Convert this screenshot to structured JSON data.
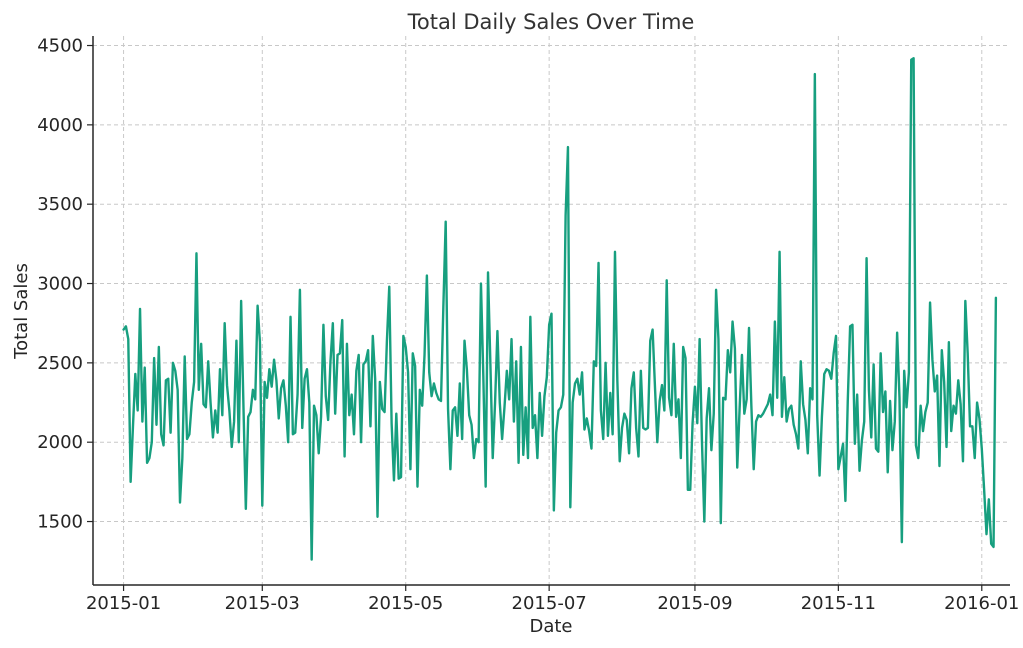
{
  "chart_data": {
    "type": "line",
    "title": "Total Daily Sales Over Time",
    "xlabel": "Date",
    "ylabel": "Total Sales",
    "x_tick_labels": [
      "2015-01",
      "2015-03",
      "2015-05",
      "2015-07",
      "2015-09",
      "2015-11",
      "2016-01"
    ],
    "x_tick_dates": [
      "2015-01-01",
      "2015-03-01",
      "2015-05-01",
      "2015-07-01",
      "2015-09-01",
      "2015-11-01",
      "2016-01-01"
    ],
    "x_range": [
      "2014-12-19",
      "2016-01-13"
    ],
    "y_ticks": [
      1500,
      2000,
      2500,
      3000,
      3500,
      4000,
      4500
    ],
    "ylim": [
      1100,
      4560
    ],
    "grid": true,
    "line_color": "#179f7f",
    "grid_color": "#c8c8c8",
    "series": [
      {
        "start_date": "2015-01-01",
        "end_date": "2015-12-31",
        "values": [
          2710,
          2730,
          2650,
          1750,
          2100,
          2430,
          2200,
          2840,
          2130,
          2470,
          1870,
          1900,
          2000,
          2530,
          2110,
          2600,
          2050,
          1980,
          2390,
          2400,
          2060,
          2500,
          2450,
          2330,
          1620,
          1900,
          2540,
          2020,
          2050,
          2250,
          2380,
          3190,
          2330,
          2620,
          2240,
          2220,
          2510,
          2250,
          2030,
          2200,
          2060,
          2460,
          2170,
          2750,
          2360,
          2200,
          1970,
          2130,
          2640,
          2000,
          2890,
          2220,
          1580,
          2160,
          2190,
          2330,
          2270,
          2860,
          2630,
          1600,
          2380,
          2280,
          2460,
          2350,
          2520,
          2390,
          2150,
          2340,
          2390,
          2230,
          2000,
          2790,
          2050,
          2060,
          2300,
          2960,
          2090,
          2400,
          2460,
          2250,
          1260,
          2230,
          2170,
          1930,
          2160,
          2740,
          2290,
          2140,
          2510,
          2750,
          2180,
          2550,
          2560,
          2770,
          1910,
          2620,
          2170,
          2300,
          2050,
          2450,
          2550,
          2000,
          2490,
          2510,
          2580,
          2100,
          2670,
          2400,
          1530,
          2380,
          2210,
          2190,
          2640,
          2980,
          2120,
          1760,
          2180,
          1770,
          1780,
          2670,
          2600,
          2440,
          1830,
          2560,
          2480,
          1720,
          2330,
          2230,
          2550,
          3050,
          2440,
          2290,
          2370,
          2310,
          2270,
          2260,
          2850,
          3390,
          2210,
          1830,
          2200,
          2220,
          2040,
          2370,
          2020,
          2640,
          2460,
          2170,
          2110,
          1900,
          2020,
          2000,
          3000,
          2420,
          1720,
          3070,
          2500,
          1900,
          2250,
          2700,
          2250,
          2020,
          2220,
          2450,
          2270,
          2650,
          2130,
          2510,
          1870,
          2600,
          1920,
          2220,
          1900,
          2790,
          2090,
          2170,
          1900,
          2310,
          2040,
          2290,
          2410,
          2740,
          2810,
          1570,
          2060,
          2200,
          2220,
          2300,
          3430,
          3860,
          1590,
          2250,
          2370,
          2400,
          2300,
          2440,
          2080,
          2150,
          2070,
          1960,
          2510,
          2480,
          3130,
          2200,
          2020,
          2500,
          2040,
          2310,
          2050,
          3200,
          2390,
          1880,
          2090,
          2180,
          2140,
          1930,
          2340,
          2440,
          2090,
          1910,
          2450,
          2090,
          2080,
          2090,
          2640,
          2710,
          2350,
          2000,
          2260,
          2360,
          2200,
          3020,
          2280,
          2170,
          2620,
          2160,
          2270,
          1900,
          2600,
          2530,
          1700,
          1700,
          2120,
          2350,
          2120,
          2650,
          2000,
          1500,
          2150,
          2340,
          1950,
          2180,
          2960,
          2650,
          1490,
          2280,
          2270,
          2580,
          2440,
          2760,
          2590,
          1840,
          2210,
          2550,
          2180,
          2270,
          2720,
          2230,
          1830,
          2130,
          2170,
          2160,
          2180,
          2210,
          2240,
          2300,
          2170,
          2760,
          2280,
          3200,
          2160,
          2410,
          2130,
          2210,
          2230,
          2110,
          2050,
          1960,
          2510,
          2240,
          2140,
          1930,
          2340,
          2270,
          4320,
          2170,
          1790,
          2160,
          2430,
          2460,
          2450,
          2400,
          2560,
          2670,
          1830,
          1910,
          1990,
          1630,
          2260,
          2730,
          2740,
          1990,
          2300,
          1820,
          2010,
          2130,
          3160,
          2330,
          2030,
          2490,
          1960,
          1940,
          2560,
          2190,
          2320,
          1810,
          2260,
          1950,
          2130,
          2690,
          2280,
          1370,
          2450,
          2220,
          2440,
          4410,
          4420,
          1980,
          1900,
          2230,
          2070,
          2190,
          2250,
          2880,
          2520,
          2320,
          2420,
          1850,
          2580,
          2380,
          1970,
          2630,
          2070,
          2230,
          2180,
          2390,
          2240,
          1880,
          2890,
          2560,
          2100,
          2100,
          1900,
          2250,
          2150,
          1960,
          1700,
          1420,
          1640,
          1360,
          1340,
          2910
        ]
      }
    ]
  }
}
